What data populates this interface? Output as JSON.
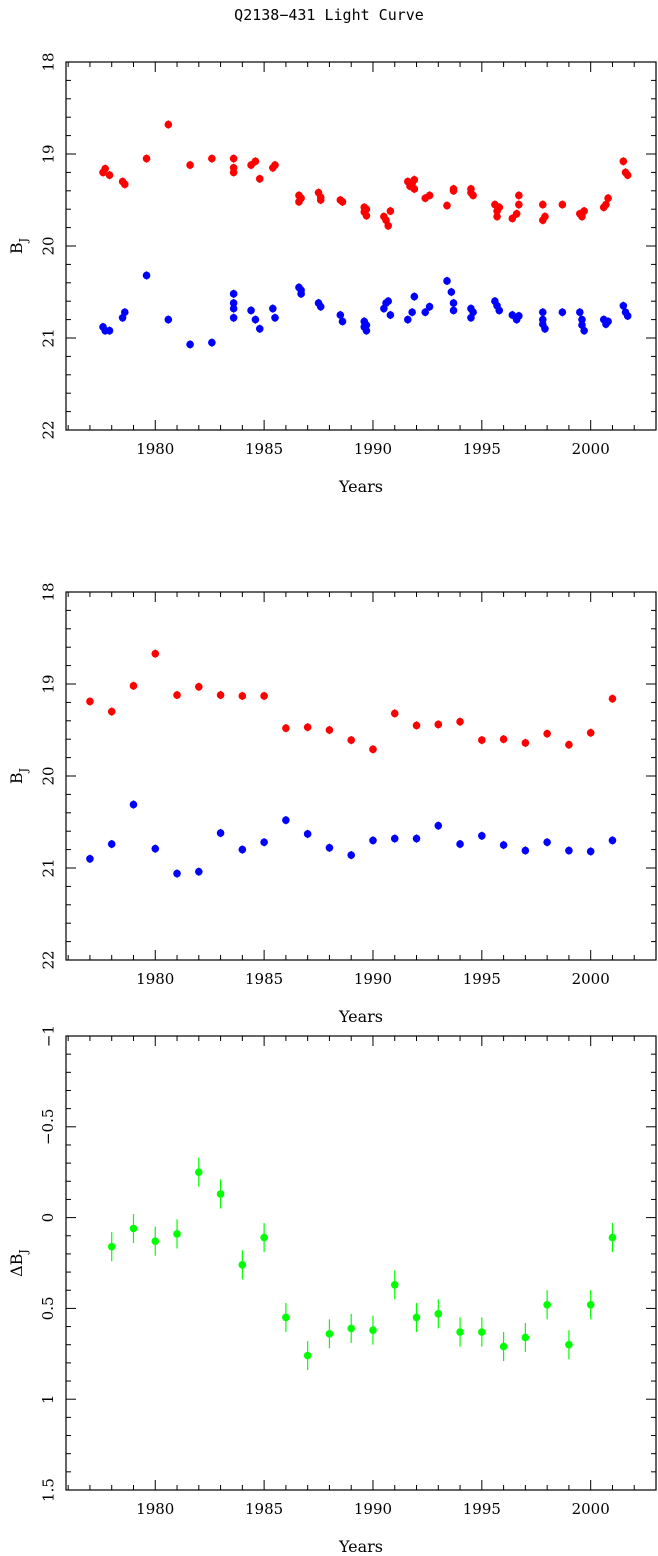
{
  "figure": {
    "title": "Q2138−431 Light Curve"
  },
  "chart_data": [
    {
      "type": "scatter",
      "title": "",
      "xlabel": "Years",
      "ylabel_main": "B",
      "ylabel_sub": "J",
      "xlim": [
        1975.9,
        2003.0
      ],
      "ylim": [
        22,
        18
      ],
      "y_inverted": true,
      "xticks": [
        1980,
        1985,
        1990,
        1995,
        2000
      ],
      "yticks": [
        18,
        19,
        20,
        21,
        22
      ],
      "grid": false,
      "error_bars": true,
      "series": [
        {
          "color": "#ff0000",
          "points": [
            [
              1977.6,
              19.2
            ],
            [
              1977.7,
              19.16
            ],
            [
              1977.9,
              19.23
            ],
            [
              1978.5,
              19.3
            ],
            [
              1978.6,
              19.33
            ],
            [
              1979.6,
              19.05
            ],
            [
              1980.6,
              18.68
            ],
            [
              1981.6,
              19.12
            ],
            [
              1982.6,
              19.05
            ],
            [
              1983.6,
              19.05
            ],
            [
              1983.6,
              19.15
            ],
            [
              1983.6,
              19.2
            ],
            [
              1984.4,
              19.12
            ],
            [
              1984.6,
              19.08
            ],
            [
              1984.8,
              19.27
            ],
            [
              1985.4,
              19.15
            ],
            [
              1985.5,
              19.12
            ],
            [
              1986.6,
              19.45
            ],
            [
              1986.6,
              19.52
            ],
            [
              1986.7,
              19.48
            ],
            [
              1987.5,
              19.42
            ],
            [
              1987.6,
              19.5
            ],
            [
              1987.6,
              19.47
            ],
            [
              1988.5,
              19.5
            ],
            [
              1988.6,
              19.52
            ],
            [
              1989.6,
              19.58
            ],
            [
              1989.6,
              19.63
            ],
            [
              1989.7,
              19.67
            ],
            [
              1989.7,
              19.6
            ],
            [
              1990.5,
              19.68
            ],
            [
              1990.6,
              19.72
            ],
            [
              1990.7,
              19.78
            ],
            [
              1990.8,
              19.62
            ],
            [
              1991.6,
              19.3
            ],
            [
              1991.7,
              19.35
            ],
            [
              1991.8,
              19.32
            ],
            [
              1991.9,
              19.38
            ],
            [
              1991.9,
              19.28
            ],
            [
              1992.4,
              19.48
            ],
            [
              1992.6,
              19.45
            ],
            [
              1993.4,
              19.56
            ],
            [
              1993.7,
              19.4
            ],
            [
              1993.7,
              19.38
            ],
            [
              1994.5,
              19.42
            ],
            [
              1994.5,
              19.38
            ],
            [
              1994.6,
              19.45
            ],
            [
              1995.6,
              19.55
            ],
            [
              1995.7,
              19.62
            ],
            [
              1995.7,
              19.68
            ],
            [
              1995.8,
              19.58
            ],
            [
              1996.4,
              19.7
            ],
            [
              1996.6,
              19.65
            ],
            [
              1996.7,
              19.55
            ],
            [
              1996.7,
              19.45
            ],
            [
              1997.8,
              19.55
            ],
            [
              1997.8,
              19.72
            ],
            [
              1997.9,
              19.68
            ],
            [
              1998.7,
              19.55
            ],
            [
              1999.5,
              19.65
            ],
            [
              1999.6,
              19.68
            ],
            [
              1999.7,
              19.62
            ],
            [
              2000.6,
              19.58
            ],
            [
              2000.7,
              19.55
            ],
            [
              2000.8,
              19.48
            ],
            [
              2001.5,
              19.08
            ],
            [
              2001.6,
              19.2
            ],
            [
              2001.7,
              19.23
            ]
          ]
        },
        {
          "color": "#0000ff",
          "points": [
            [
              1977.6,
              20.88
            ],
            [
              1977.7,
              20.92
            ],
            [
              1977.9,
              20.92
            ],
            [
              1978.5,
              20.78
            ],
            [
              1978.6,
              20.72
            ],
            [
              1979.6,
              20.32
            ],
            [
              1980.6,
              20.8
            ],
            [
              1981.6,
              21.07
            ],
            [
              1982.6,
              21.05
            ],
            [
              1983.6,
              20.52
            ],
            [
              1983.6,
              20.62
            ],
            [
              1983.6,
              20.68
            ],
            [
              1983.6,
              20.78
            ],
            [
              1984.4,
              20.7
            ],
            [
              1984.6,
              20.8
            ],
            [
              1984.8,
              20.9
            ],
            [
              1985.4,
              20.68
            ],
            [
              1985.5,
              20.78
            ],
            [
              1986.6,
              20.45
            ],
            [
              1986.7,
              20.52
            ],
            [
              1986.7,
              20.48
            ],
            [
              1987.5,
              20.62
            ],
            [
              1987.6,
              20.66
            ],
            [
              1988.5,
              20.75
            ],
            [
              1988.6,
              20.82
            ],
            [
              1989.6,
              20.82
            ],
            [
              1989.6,
              20.88
            ],
            [
              1989.7,
              20.92
            ],
            [
              1989.7,
              20.86
            ],
            [
              1990.5,
              20.68
            ],
            [
              1990.6,
              20.62
            ],
            [
              1990.7,
              20.6
            ],
            [
              1990.8,
              20.75
            ],
            [
              1991.6,
              20.8
            ],
            [
              1991.8,
              20.72
            ],
            [
              1991.9,
              20.55
            ],
            [
              1992.4,
              20.72
            ],
            [
              1992.6,
              20.66
            ],
            [
              1993.4,
              20.38
            ],
            [
              1993.6,
              20.5
            ],
            [
              1993.7,
              20.62
            ],
            [
              1993.7,
              20.7
            ],
            [
              1994.5,
              20.68
            ],
            [
              1994.5,
              20.78
            ],
            [
              1994.6,
              20.72
            ],
            [
              1995.6,
              20.6
            ],
            [
              1995.7,
              20.65
            ],
            [
              1995.8,
              20.7
            ],
            [
              1996.4,
              20.75
            ],
            [
              1996.6,
              20.8
            ],
            [
              1996.7,
              20.76
            ],
            [
              1997.8,
              20.72
            ],
            [
              1997.8,
              20.8
            ],
            [
              1997.8,
              20.85
            ],
            [
              1997.9,
              20.9
            ],
            [
              1998.7,
              20.72
            ],
            [
              1999.5,
              20.72
            ],
            [
              1999.6,
              20.8
            ],
            [
              1999.6,
              20.86
            ],
            [
              1999.7,
              20.92
            ],
            [
              2000.6,
              20.8
            ],
            [
              2000.7,
              20.85
            ],
            [
              2000.8,
              20.82
            ],
            [
              2001.5,
              20.65
            ],
            [
              2001.6,
              20.72
            ],
            [
              2001.7,
              20.76
            ]
          ]
        }
      ]
    },
    {
      "type": "scatter",
      "title": "",
      "xlabel": "Years",
      "ylabel_main": "B",
      "ylabel_sub": "J",
      "xlim": [
        1975.9,
        2003.0
      ],
      "ylim": [
        22,
        18
      ],
      "y_inverted": true,
      "xticks": [
        1980,
        1985,
        1990,
        1995,
        2000
      ],
      "yticks": [
        18,
        19,
        20,
        21,
        22
      ],
      "grid": false,
      "error_bars": true,
      "series": [
        {
          "color": "#ff0000",
          "points": [
            [
              1977,
              19.19
            ],
            [
              1978,
              19.3
            ],
            [
              1979,
              19.02
            ],
            [
              1980,
              18.67
            ],
            [
              1981,
              19.12
            ],
            [
              1982,
              19.03
            ],
            [
              1983,
              19.12
            ],
            [
              1984,
              19.13
            ],
            [
              1985,
              19.13
            ],
            [
              1986,
              19.48
            ],
            [
              1987,
              19.47
            ],
            [
              1988,
              19.5
            ],
            [
              1989,
              19.61
            ],
            [
              1990,
              19.71
            ],
            [
              1991,
              19.32
            ],
            [
              1992,
              19.45
            ],
            [
              1993,
              19.44
            ],
            [
              1994,
              19.41
            ],
            [
              1995,
              19.61
            ],
            [
              1996,
              19.6
            ],
            [
              1997,
              19.64
            ],
            [
              1998,
              19.54
            ],
            [
              1999,
              19.66
            ],
            [
              2000,
              19.53
            ],
            [
              2001,
              19.16
            ]
          ]
        },
        {
          "color": "#0000ff",
          "points": [
            [
              1977,
              20.9
            ],
            [
              1978,
              20.74
            ],
            [
              1979,
              20.31
            ],
            [
              1980,
              20.79
            ],
            [
              1981,
              21.06
            ],
            [
              1982,
              21.04
            ],
            [
              1983,
              20.62
            ],
            [
              1984,
              20.8
            ],
            [
              1985,
              20.72
            ],
            [
              1986,
              20.48
            ],
            [
              1987,
              20.63
            ],
            [
              1988,
              20.78
            ],
            [
              1989,
              20.86
            ],
            [
              1990,
              20.7
            ],
            [
              1991,
              20.68
            ],
            [
              1992,
              20.68
            ],
            [
              1993,
              20.54
            ],
            [
              1994,
              20.74
            ],
            [
              1995,
              20.65
            ],
            [
              1996,
              20.75
            ],
            [
              1997,
              20.81
            ],
            [
              1998,
              20.72
            ],
            [
              1999,
              20.81
            ],
            [
              2000,
              20.82
            ],
            [
              2001,
              20.7
            ]
          ]
        }
      ]
    },
    {
      "type": "scatter",
      "title": "",
      "xlabel": "Years",
      "ylabel_main": "ΔB",
      "ylabel_sub": "J",
      "xlim": [
        1975.9,
        2003.0
      ],
      "ylim": [
        1.5,
        -1.0
      ],
      "y_inverted": true,
      "xticks": [
        1980,
        1985,
        1990,
        1995,
        2000
      ],
      "yticks": [
        -1,
        -0.5,
        0,
        0.5,
        1,
        1.5
      ],
      "ytick_labels": [
        "−1",
        "−0.5",
        "0",
        "0.5",
        "1",
        "1.5"
      ],
      "grid": false,
      "error_bars": true,
      "series": [
        {
          "color": "#00ff00",
          "points": [
            [
              1978,
              0.16
            ],
            [
              1979,
              0.06
            ],
            [
              1980,
              0.13
            ],
            [
              1981,
              0.09
            ],
            [
              1982,
              -0.25
            ],
            [
              1983,
              -0.13
            ],
            [
              1984,
              0.26
            ],
            [
              1985,
              0.11
            ],
            [
              1986,
              0.55
            ],
            [
              1987,
              0.76
            ],
            [
              1988,
              0.64
            ],
            [
              1989,
              0.61
            ],
            [
              1990,
              0.62
            ],
            [
              1991,
              0.37
            ],
            [
              1992,
              0.55
            ],
            [
              1993,
              0.53
            ],
            [
              1994,
              0.63
            ],
            [
              1995,
              0.63
            ],
            [
              1996,
              0.71
            ],
            [
              1997,
              0.66
            ],
            [
              1998,
              0.48
            ],
            [
              1999,
              0.7
            ],
            [
              2000,
              0.48
            ],
            [
              2001,
              0.11
            ]
          ]
        }
      ]
    }
  ]
}
